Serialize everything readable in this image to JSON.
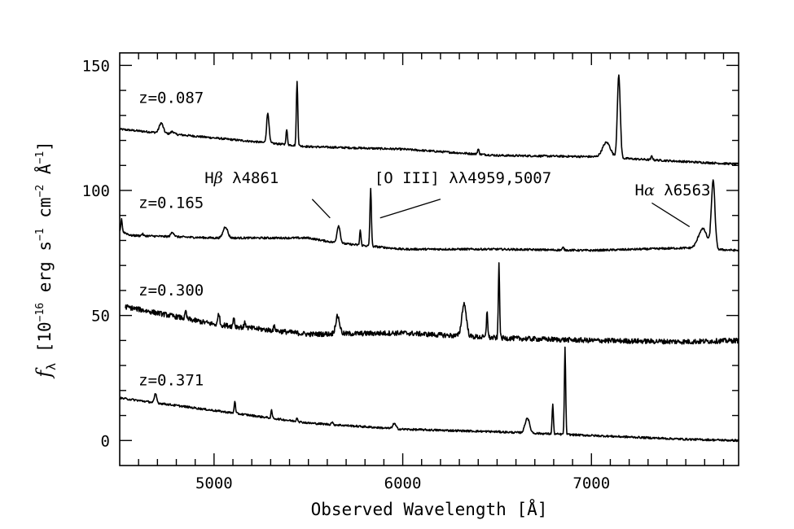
{
  "chart_data": {
    "type": "line",
    "xlabel": "Observed Wavelength [Å]",
    "ylabel_parts": {
      "symbol": "f",
      "sub": "λ",
      "open": " [10",
      "exp1": "−16",
      "unit1": " erg s",
      "exp2": "−1",
      "unit2": " cm",
      "exp3": "−2",
      "unit3": " Å",
      "exp4": "−1",
      "close": "]"
    },
    "xlim": [
      4500,
      7780
    ],
    "ylim": [
      -10,
      155
    ],
    "x_ticks": [
      5000,
      6000,
      7000
    ],
    "x_tick_labels": [
      "5000",
      "6000",
      "7000"
    ],
    "y_ticks": [
      0,
      50,
      100,
      150
    ],
    "y_tick_labels": [
      "0",
      "50",
      "100",
      "150"
    ],
    "grid": false,
    "legend": "none",
    "series": [
      {
        "name": "z=0.087",
        "continuum": [
          [
            4500,
            124.5
          ],
          [
            5000,
            121
          ],
          [
            5500,
            117.5
          ],
          [
            6000,
            116.5
          ],
          [
            6500,
            114
          ],
          [
            7000,
            113.5
          ],
          [
            7500,
            111.5
          ],
          [
            7780,
            110.5
          ]
        ],
        "lines": [
          {
            "x": 4720,
            "h": 4,
            "w": 25
          },
          {
            "x": 4780,
            "h": 1,
            "w": 20
          },
          {
            "x": 5285,
            "h": 12,
            "w": 15
          },
          {
            "x": 5385,
            "h": 6,
            "w": 9
          },
          {
            "x": 5440,
            "h": 25.5,
            "w": 9
          },
          {
            "x": 6400,
            "h": 2,
            "w": 10
          },
          {
            "x": 7080,
            "h": 6,
            "w": 50
          },
          {
            "x": 7145,
            "h": 33,
            "w": 18
          },
          {
            "x": 7320,
            "h": 1.5,
            "w": 10
          }
        ],
        "noise": 0.4
      },
      {
        "name": "z=0.165",
        "continuum": [
          [
            4500,
            84
          ],
          [
            4560,
            82
          ],
          [
            5000,
            81
          ],
          [
            5500,
            81
          ],
          [
            5650,
            79
          ],
          [
            6000,
            76.5
          ],
          [
            6500,
            76.5
          ],
          [
            7000,
            76
          ],
          [
            7500,
            77
          ],
          [
            7780,
            76
          ]
        ],
        "lines": [
          {
            "x": 4510,
            "h": 5,
            "w": 8
          },
          {
            "x": 4620,
            "h": 0.8,
            "w": 10
          },
          {
            "x": 4780,
            "h": 1.8,
            "w": 20
          },
          {
            "x": 5060,
            "h": 4.5,
            "w": 28
          },
          {
            "x": 5660,
            "h": 7,
            "w": 20
          },
          {
            "x": 5775,
            "h": 6,
            "w": 8
          },
          {
            "x": 5830,
            "h": 23,
            "w": 9
          },
          {
            "x": 6850,
            "h": 1,
            "w": 10
          },
          {
            "x": 7590,
            "h": 8,
            "w": 55
          },
          {
            "x": 7645,
            "h": 27,
            "w": 22
          }
        ],
        "noise": 0.4
      },
      {
        "name": "z=0.300",
        "continuum": [
          [
            4530,
            53.5
          ],
          [
            5000,
            46.5
          ],
          [
            5500,
            42.5
          ],
          [
            6000,
            43
          ],
          [
            6500,
            41
          ],
          [
            7000,
            40
          ],
          [
            7500,
            39.5
          ],
          [
            7780,
            40
          ]
        ],
        "lines": [
          {
            "x": 4850,
            "h": 3,
            "w": 8
          },
          {
            "x": 5025,
            "h": 5,
            "w": 10
          },
          {
            "x": 5105,
            "h": 4,
            "w": 8
          },
          {
            "x": 5165,
            "h": 2,
            "w": 10
          },
          {
            "x": 5320,
            "h": 1.5,
            "w": 12
          },
          {
            "x": 5655,
            "h": 7,
            "w": 25
          },
          {
            "x": 6325,
            "h": 13,
            "w": 28
          },
          {
            "x": 6447,
            "h": 11,
            "w": 8
          },
          {
            "x": 6510,
            "h": 30,
            "w": 8
          }
        ],
        "noise": 1.0
      },
      {
        "name": "z=0.371",
        "continuum": [
          [
            4500,
            17
          ],
          [
            5000,
            12
          ],
          [
            5500,
            7
          ],
          [
            6000,
            4.5
          ],
          [
            6500,
            3.5
          ],
          [
            7000,
            2
          ],
          [
            7500,
            0.5
          ],
          [
            7780,
            0
          ]
        ],
        "lines": [
          {
            "x": 4690,
            "h": 3.5,
            "w": 14
          },
          {
            "x": 5110,
            "h": 5,
            "w": 8
          },
          {
            "x": 5305,
            "h": 3,
            "w": 8
          },
          {
            "x": 5440,
            "h": 1.5,
            "w": 10
          },
          {
            "x": 5625,
            "h": 1,
            "w": 10
          },
          {
            "x": 5955,
            "h": 2,
            "w": 20
          },
          {
            "x": 6660,
            "h": 6,
            "w": 28
          },
          {
            "x": 6795,
            "h": 12,
            "w": 8
          },
          {
            "x": 6860,
            "h": 35,
            "w": 8
          }
        ],
        "noise": 0.4
      }
    ],
    "series_labels": [
      {
        "text": "z=0.087",
        "x": 4600,
        "y": 135
      },
      {
        "text": "z=0.165",
        "x": 4600,
        "y": 93
      },
      {
        "text": "z=0.300",
        "x": 4600,
        "y": 58
      },
      {
        "text": "z=0.371",
        "x": 4600,
        "y": 22
      }
    ],
    "annotations": [
      {
        "text_pre": "H",
        "text_greek": "β",
        "text_post": " λ4861",
        "label_x": 4950,
        "label_y": 103,
        "line": [
          [
            5520,
            96.5
          ],
          [
            5615,
            89
          ]
        ]
      },
      {
        "text_pre": "[O III] λλ4959,5007",
        "text_greek": "",
        "text_post": "",
        "label_x": 5850,
        "label_y": 103,
        "line": [
          [
            6200,
            96.5
          ],
          [
            5880,
            89
          ]
        ]
      },
      {
        "text_pre": "H",
        "text_greek": "α",
        "text_post": " λ6563",
        "label_x": 7230,
        "label_y": 98,
        "line": [
          [
            7320,
            95
          ],
          [
            7520,
            85.5
          ]
        ]
      }
    ]
  }
}
